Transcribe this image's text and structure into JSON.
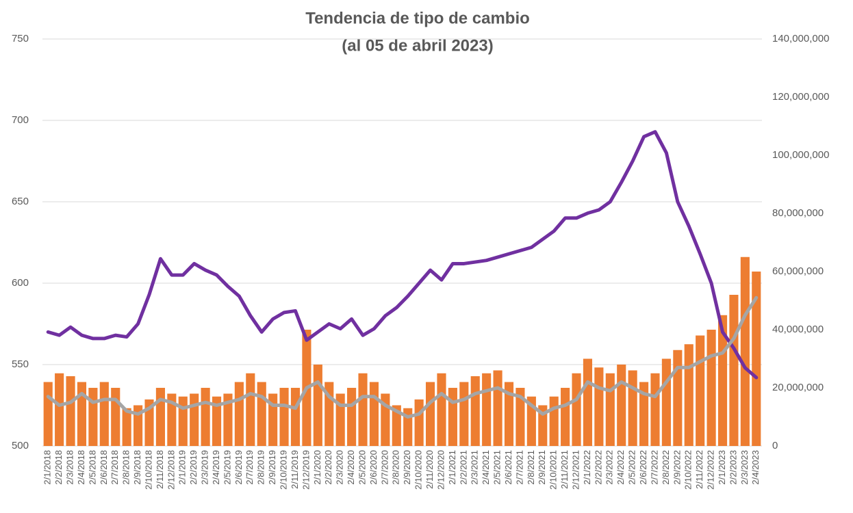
{
  "chart_data": {
    "type": "combo",
    "title": "Tendencia de tipo de cambio",
    "subtitle": "(al 05 de abril 2023)",
    "categories": [
      "2/1/2018",
      "2/2/2018",
      "2/3/2018",
      "2/4/2018",
      "2/5/2018",
      "2/6/2018",
      "2/7/2018",
      "2/8/2018",
      "2/9/2018",
      "2/10/2018",
      "2/11/2018",
      "2/12/2018",
      "2/1/2019",
      "2/2/2019",
      "2/3/2019",
      "2/4/2019",
      "2/5/2019",
      "2/6/2019",
      "2/7/2019",
      "2/8/2019",
      "2/9/2019",
      "2/10/2019",
      "2/11/2019",
      "2/12/2019",
      "2/1/2020",
      "2/2/2020",
      "2/3/2020",
      "2/4/2020",
      "2/5/2020",
      "2/6/2020",
      "2/7/2020",
      "2/8/2020",
      "2/9/2020",
      "2/10/2020",
      "2/11/2020",
      "2/12/2020",
      "2/1/2021",
      "2/2/2021",
      "2/3/2021",
      "2/4/2021",
      "2/5/2021",
      "2/6/2021",
      "2/7/2021",
      "2/8/2021",
      "2/9/2021",
      "2/10/2021",
      "2/11/2021",
      "2/12/2021",
      "2/1/2022",
      "2/2/2022",
      "2/3/2022",
      "2/4/2022",
      "2/5/2022",
      "2/6/2022",
      "2/7/2022",
      "2/8/2022",
      "2/9/2022",
      "2/10/2022",
      "2/11/2022",
      "2/12/2022",
      "2/1/2023",
      "2/2/2023",
      "2/3/2023",
      "2/4/2023"
    ],
    "series": [
      {
        "type": "bar",
        "axis": "y2",
        "color": "#ED7D31",
        "values": [
          22000000,
          25000000,
          24000000,
          22000000,
          20000000,
          22000000,
          20000000,
          13000000,
          14000000,
          16000000,
          20000000,
          18000000,
          17000000,
          18000000,
          20000000,
          17000000,
          18000000,
          22000000,
          25000000,
          22000000,
          18000000,
          20000000,
          20000000,
          40000000,
          28000000,
          22000000,
          18000000,
          20000000,
          25000000,
          22000000,
          18000000,
          14000000,
          13000000,
          16000000,
          22000000,
          25000000,
          20000000,
          22000000,
          24000000,
          25000000,
          26000000,
          22000000,
          20000000,
          17000000,
          14000000,
          17000000,
          20000000,
          25000000,
          30000000,
          27000000,
          25000000,
          28000000,
          26000000,
          22000000,
          25000000,
          30000000,
          33000000,
          35000000,
          38000000,
          40000000,
          45000000,
          52000000,
          65000000,
          60000000
        ]
      },
      {
        "type": "line",
        "axis": "y",
        "color": "#7030A0",
        "values": [
          570,
          568,
          573,
          568,
          566,
          566,
          568,
          567,
          575,
          593,
          615,
          605,
          605,
          612,
          608,
          605,
          598,
          592,
          580,
          570,
          578,
          582,
          583,
          565,
          570,
          575,
          572,
          578,
          568,
          572,
          580,
          585,
          592,
          600,
          608,
          602,
          612,
          612,
          613,
          614,
          616,
          618,
          620,
          622,
          627,
          632,
          640,
          640,
          643,
          645,
          650,
          662,
          675,
          690,
          693,
          680,
          650,
          635,
          618,
          600,
          570,
          560,
          548,
          542
        ]
      },
      {
        "type": "line",
        "axis": "y2",
        "color": "#A5A5A5",
        "values": [
          17000000,
          14000000,
          15000000,
          18000000,
          15000000,
          16000000,
          16000000,
          12000000,
          11000000,
          13000000,
          16000000,
          15000000,
          13000000,
          14000000,
          15000000,
          14000000,
          15000000,
          16000000,
          18000000,
          17000000,
          14000000,
          14000000,
          13000000,
          20000000,
          22000000,
          17000000,
          14000000,
          14000000,
          17000000,
          17000000,
          14000000,
          12000000,
          10000000,
          11000000,
          15000000,
          18000000,
          15000000,
          16000000,
          18000000,
          19000000,
          20000000,
          18000000,
          17000000,
          14000000,
          11000000,
          13000000,
          14000000,
          16000000,
          22000000,
          20000000,
          19000000,
          22000000,
          20000000,
          18000000,
          17000000,
          22000000,
          27000000,
          27000000,
          29000000,
          31000000,
          32000000,
          37000000,
          45000000,
          51000000
        ]
      }
    ],
    "ylim": [
      500,
      750
    ],
    "yticks": [
      500,
      550,
      600,
      650,
      700,
      750
    ],
    "y2lim": [
      0,
      140000000
    ],
    "y2ticks": [
      0,
      {
        "value": 20000000,
        "label": "20,000,000"
      },
      {
        "value": 40000000,
        "label": "40,000,000"
      },
      {
        "value": 60000000,
        "label": "60,000,000"
      },
      {
        "value": 80000000,
        "label": "80,000,000"
      },
      {
        "value": 100000000,
        "label": "100,000,000"
      },
      {
        "value": 120000000,
        "label": "120,000,000"
      },
      {
        "value": 140000000,
        "label": "140,000,000"
      }
    ],
    "grid": true
  }
}
